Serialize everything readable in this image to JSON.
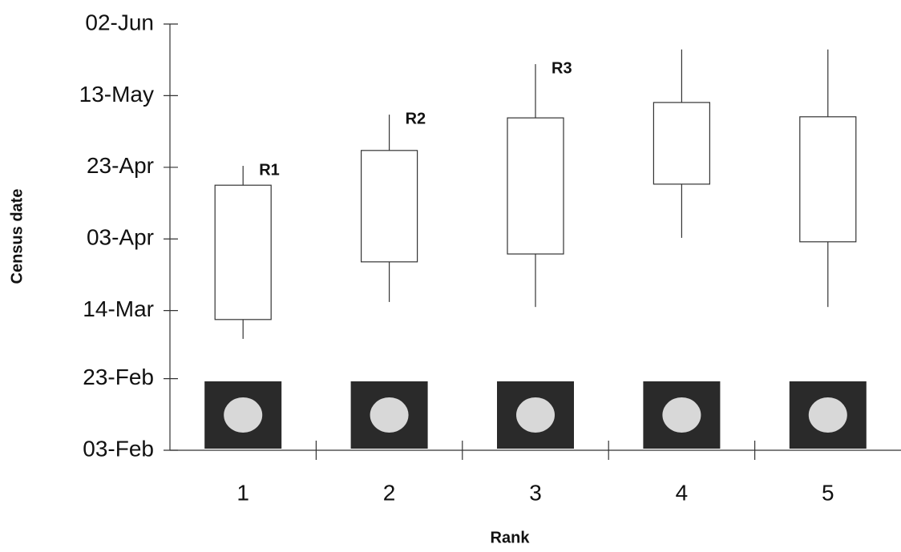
{
  "chart_data": {
    "type": "box",
    "x_label": "Rank",
    "y_label": "Census date",
    "categories": [
      "1",
      "2",
      "3",
      "4",
      "5"
    ],
    "low": [
      65.1,
      75.4,
      74,
      93.3,
      74
    ],
    "q1": [
      70.5,
      86.6,
      88.8,
      108.3,
      92.2
    ],
    "q3": [
      108,
      117.7,
      126.8,
      131.1,
      127.1
    ],
    "high": [
      113.4,
      127.7,
      141.8,
      145.9,
      145.9
    ],
    "annotations": [
      "R1",
      "R2",
      "R3",
      null,
      null
    ],
    "color": "#ffffff",
    "ylim": [
      34,
      153
    ],
    "yticks": [
      {
        "value": 34,
        "label": "03-Feb"
      },
      {
        "value": 54,
        "label": "23-Feb"
      },
      {
        "value": 73,
        "label": "14-Mar"
      },
      {
        "value": 93,
        "label": "03-Apr"
      },
      {
        "value": 113,
        "label": "23-Apr"
      },
      {
        "value": 133,
        "label": "13-May"
      },
      {
        "value": 153,
        "label": "02-Jun"
      }
    ]
  }
}
